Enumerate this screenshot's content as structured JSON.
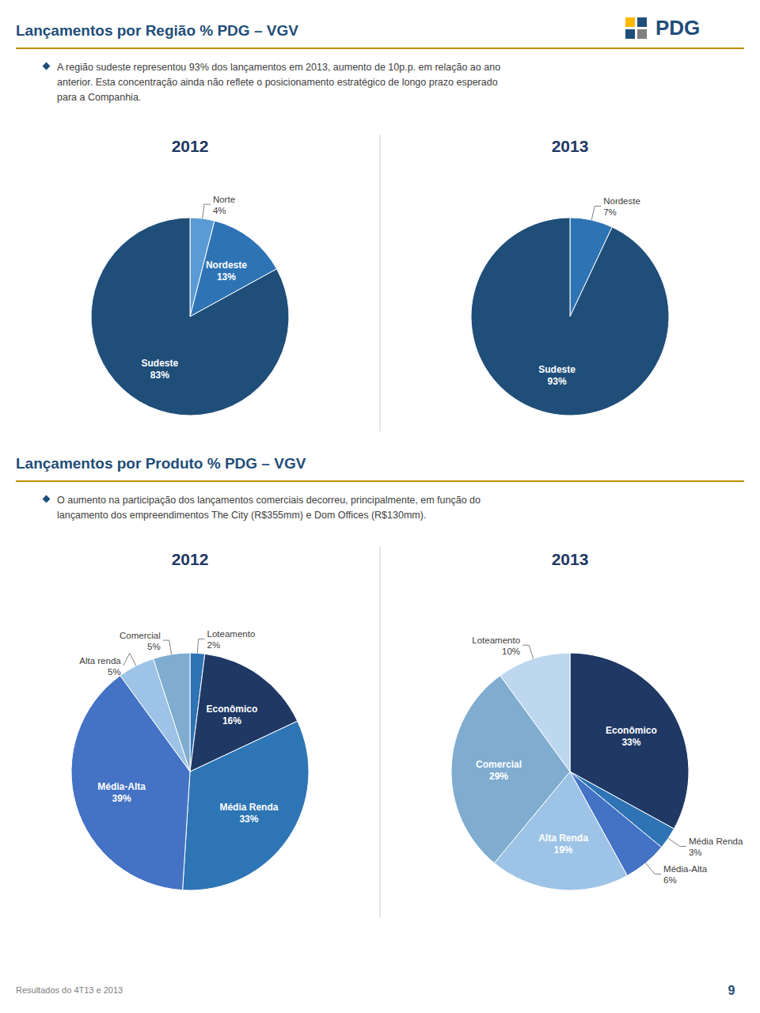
{
  "chart_data": [
    {
      "type": "pie",
      "title": "2012",
      "annotations": [
        "Lançamentos por Região % PDG – VGV",
        "A região sudeste representou 93% dos lançamentos em 2013, aumento de 10p.p. em relação ao ano",
        "anterior. Esta concentração ainda não reflete o posicionamento estratégico de longo prazo esperado",
        "para a Companhia."
      ],
      "categories": [
        "Norte",
        "Nordeste",
        "Sudeste"
      ],
      "values": [
        4,
        13,
        83
      ],
      "value_labels": [
        "4%",
        "13%",
        "83%"
      ],
      "colors": [
        "#5B9BD5",
        "#2E74B5",
        "#1F4E79"
      ],
      "data_labels": true
    },
    {
      "type": "pie",
      "title": "2013",
      "annotations": [
        "PDG"
      ],
      "categories": [
        "Nordeste",
        "Sudeste"
      ],
      "values": [
        7,
        93
      ],
      "value_labels": [
        "7%",
        "93%"
      ],
      "colors": [
        "#2E74B5",
        "#1F4E79"
      ],
      "data_labels": true
    },
    {
      "type": "pie",
      "title": "2012",
      "annotations": [
        "Lançamentos por Produto % PDG – VGV",
        "O aumento na participação dos lançamentos comerciais decorreu, principalmente, em função do",
        "lançamento dos empreendimentos The City (R$355mm) e Dom Offices (R$130mm)."
      ],
      "categories": [
        "Loteamento",
        "Econômico",
        "Média Renda",
        "Média-Alta",
        "Alta renda",
        "Comercial"
      ],
      "values": [
        2,
        16,
        33,
        39,
        5,
        5
      ],
      "value_labels": [
        "2%",
        "16%",
        "33%",
        "39%",
        "5%",
        "5%"
      ],
      "colors": [
        "#2E74B5",
        "#1F3864",
        "#2E75B6",
        "#4472C4",
        "#9DC3E6",
        "#7FACCF"
      ],
      "data_labels": true
    },
    {
      "type": "pie",
      "title": "2013",
      "annotations": [
        "Resultados do 4T13 e 2013",
        "9"
      ],
      "categories": [
        "Econômico",
        "Média Renda",
        "Média-Alta",
        "Alta Renda",
        "Comercial",
        "Loteamento"
      ],
      "values": [
        33,
        3,
        6,
        19,
        29,
        10
      ],
      "value_labels": [
        "33%",
        "3%",
        "6%",
        "19%",
        "29%",
        "10%"
      ],
      "colors": [
        "#1F3864",
        "#2E74B5",
        "#4472C4",
        "#9DC3E6",
        "#7FACCF",
        "#BDD7EE"
      ],
      "data_labels": true
    }
  ]
}
